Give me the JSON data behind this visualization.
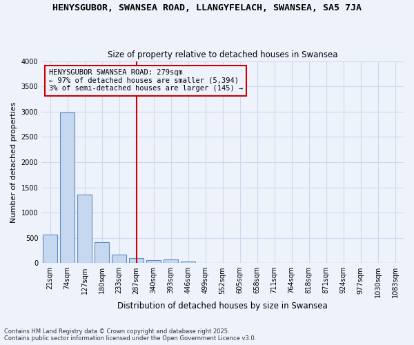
{
  "title1": "HENYSGUBOR, SWANSEA ROAD, LLANGYFELACH, SWANSEA, SA5 7JA",
  "title2": "Size of property relative to detached houses in Swansea",
  "xlabel": "Distribution of detached houses by size in Swansea",
  "ylabel": "Number of detached properties",
  "categories": [
    "21sqm",
    "74sqm",
    "127sqm",
    "180sqm",
    "233sqm",
    "287sqm",
    "340sqm",
    "393sqm",
    "446sqm",
    "499sqm",
    "552sqm",
    "605sqm",
    "658sqm",
    "711sqm",
    "764sqm",
    "818sqm",
    "871sqm",
    "924sqm",
    "977sqm",
    "1030sqm",
    "1083sqm"
  ],
  "values": [
    560,
    2980,
    1360,
    420,
    175,
    105,
    55,
    75,
    30,
    0,
    0,
    0,
    0,
    0,
    0,
    0,
    0,
    0,
    0,
    0,
    0
  ],
  "bar_color": "#c5d8f0",
  "bar_edge_color": "#5b8bc5",
  "vline_x": 5,
  "vline_color": "#cc0000",
  "annotation_text": "HENYSGUBOR SWANSEA ROAD: 279sqm\n← 97% of detached houses are smaller (5,394)\n3% of semi-detached houses are larger (145) →",
  "annotation_box_color": "#cc0000",
  "ylim": [
    0,
    4000
  ],
  "yticks": [
    0,
    500,
    1000,
    1500,
    2000,
    2500,
    3000,
    3500,
    4000
  ],
  "footnote1": "Contains HM Land Registry data © Crown copyright and database right 2025.",
  "footnote2": "Contains public sector information licensed under the Open Government Licence v3.0.",
  "bg_color": "#eef2fb",
  "grid_color": "#d0d8f0",
  "title_fontsize": 9.5,
  "subtitle_fontsize": 8.5,
  "ann_fontsize": 7.5,
  "ylabel_fontsize": 8,
  "xlabel_fontsize": 8.5,
  "tick_fontsize": 7
}
